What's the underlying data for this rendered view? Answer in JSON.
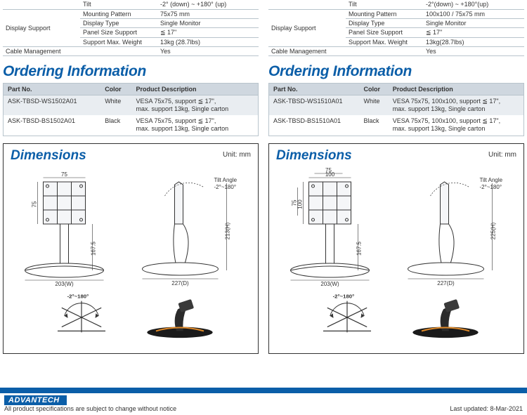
{
  "left": {
    "spec_rows": [
      {
        "cat": "",
        "lbl": "Tilt",
        "val": "-2° (down) ~ +180° (up)",
        "top": true
      },
      {
        "cat": "Display Support",
        "span": 4,
        "lbl": "Mounting Pattern",
        "val": "75x75 mm"
      },
      {
        "cat": "",
        "lbl": "Display Type",
        "val": "Single Monitor"
      },
      {
        "cat": "",
        "lbl": "Panel Size Support",
        "val": "≦ 17\""
      },
      {
        "cat": "",
        "lbl": "Support Max. Weight",
        "val": "13kg (28.7lbs)"
      },
      {
        "cat": "Cable Management",
        "lbl": "",
        "val": "Yes"
      }
    ],
    "order_title": "Ordering Information",
    "order_headers": [
      "Part No.",
      "Color",
      "Product Description"
    ],
    "order_rows": [
      {
        "alt": true,
        "p": "ASK-TBSD-WS1502A01",
        "c": "White",
        "d": "VESA 75x75, support ≦ 17\",\nmax. support 13kg, Single carton"
      },
      {
        "alt": false,
        "p": "ASK-TBSD-BS1502A01",
        "c": "Black",
        "d": "VESA 75x75, support ≦ 17\",\nmax. support 13kg, Single carton"
      }
    ],
    "dim": {
      "title": "Dimensions",
      "unit": "Unit: mm",
      "w_top": "75",
      "h_left": "75",
      "pillar_h": "167.5",
      "base_w": "203(W)",
      "tilt_label": "Tilt Angle\n-2°~180°",
      "side_h": "213(H)",
      "side_d": "227(D)",
      "swivel": "-2°~180°"
    }
  },
  "right": {
    "spec_rows": [
      {
        "cat": "",
        "lbl": "Tilt",
        "val": "-2°(down) ~ +180°(up)",
        "top": true
      },
      {
        "cat": "Display Support",
        "span": 4,
        "lbl": "Mounting Pattern",
        "val": "100x100 / 75x75 mm"
      },
      {
        "cat": "",
        "lbl": "Display Type",
        "val": "Single Monitor"
      },
      {
        "cat": "",
        "lbl": "Panel Size Support",
        "val": "≦ 17\""
      },
      {
        "cat": "",
        "lbl": "Support Max. Weight",
        "val": "13kg(28.7lbs)"
      },
      {
        "cat": "Cable Management",
        "lbl": "",
        "val": "Yes"
      }
    ],
    "order_title": "Ordering Information",
    "order_headers": [
      "Part No.",
      "Color",
      "Product Description"
    ],
    "order_rows": [
      {
        "alt": true,
        "p": "ASK-TBSD-WS1510A01",
        "c": "White",
        "d": "VESA 75x75, 100x100, support ≦ 17\",\nmax. support 13kg, Single carton"
      },
      {
        "alt": false,
        "p": "ASK-TBSD-BS1510A01",
        "c": "Black",
        "d": "VESA 75x75, 100x100, support ≦ 17\",\nmax. support 13kg, Single carton"
      }
    ],
    "dim": {
      "title": "Dimensions",
      "unit": "Unit: mm",
      "w_top": "100",
      "w_top2": "75",
      "h_left": "100",
      "h_left2": "75",
      "pillar_h": "167.5",
      "base_w": "203(W)",
      "tilt_label": "Tilt Angle\n-2°~180°",
      "side_h": "225(H)",
      "side_d": "227(D)",
      "swivel": "-2°~180°"
    }
  },
  "footer": {
    "brand": "ADVANTECH",
    "disclaimer": "All product specifications are subject to change without notice",
    "updated": "Last updated: 8-Mar-2021"
  },
  "colors": {
    "accent": "#0b5ea8",
    "row_alt": "#e9edf1",
    "header_bg": "#cfd7df",
    "border": "#b8c4cc"
  }
}
